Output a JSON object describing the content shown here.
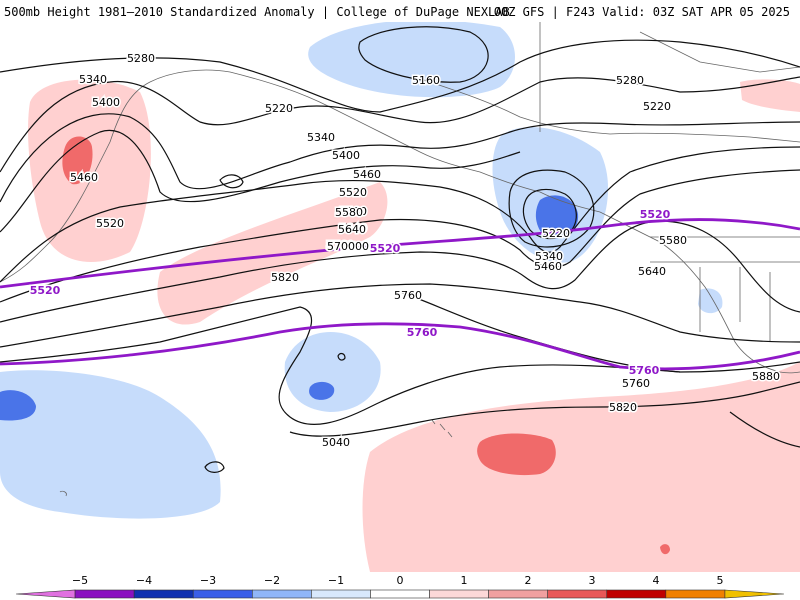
{
  "header": {
    "left_title": "500mb Height 1981–2010 Standardized Anomaly | College of DuPage NEXLAB",
    "right_title": "00Z GFS | F243 Valid: 03Z SAT APR 05 2025"
  },
  "colors": {
    "pos1": "#ffd0d0",
    "pos2": "#f06a6a",
    "neg1": "#c6dcfb",
    "neg2": "#4a74e8",
    "contour": "#111111",
    "highlight": "#8f18c8",
    "land": "#666666"
  },
  "height_labels": [
    "5280",
    "5340",
    "5400",
    "5460",
    "5520",
    "5220",
    "5580",
    "5640",
    "5700",
    "5760",
    "5820",
    "5040",
    "5160",
    "5280",
    "5220",
    "5340",
    "5400",
    "5460",
    "5520",
    "5580",
    "5640",
    "5700",
    "5760",
    "5820",
    "5880",
    "5220",
    "5340",
    "5460",
    "5580",
    "5640",
    "5760"
  ],
  "highlight_labels": [
    "5520",
    "5520",
    "5520",
    "5760",
    "5760"
  ],
  "colorbar": {
    "ticks": [
      "−5",
      "−4",
      "−3",
      "−2",
      "−1",
      "0",
      "1",
      "2",
      "3",
      "4",
      "5"
    ],
    "colors": [
      "#e070e0",
      "#8a10c0",
      "#1030b0",
      "#3a5ee8",
      "#90b6f8",
      "#d8e8fc",
      "#ffffff",
      "#fcd8d8",
      "#f0a0a0",
      "#e85858",
      "#c00000",
      "#f08000",
      "#f0c000"
    ]
  }
}
